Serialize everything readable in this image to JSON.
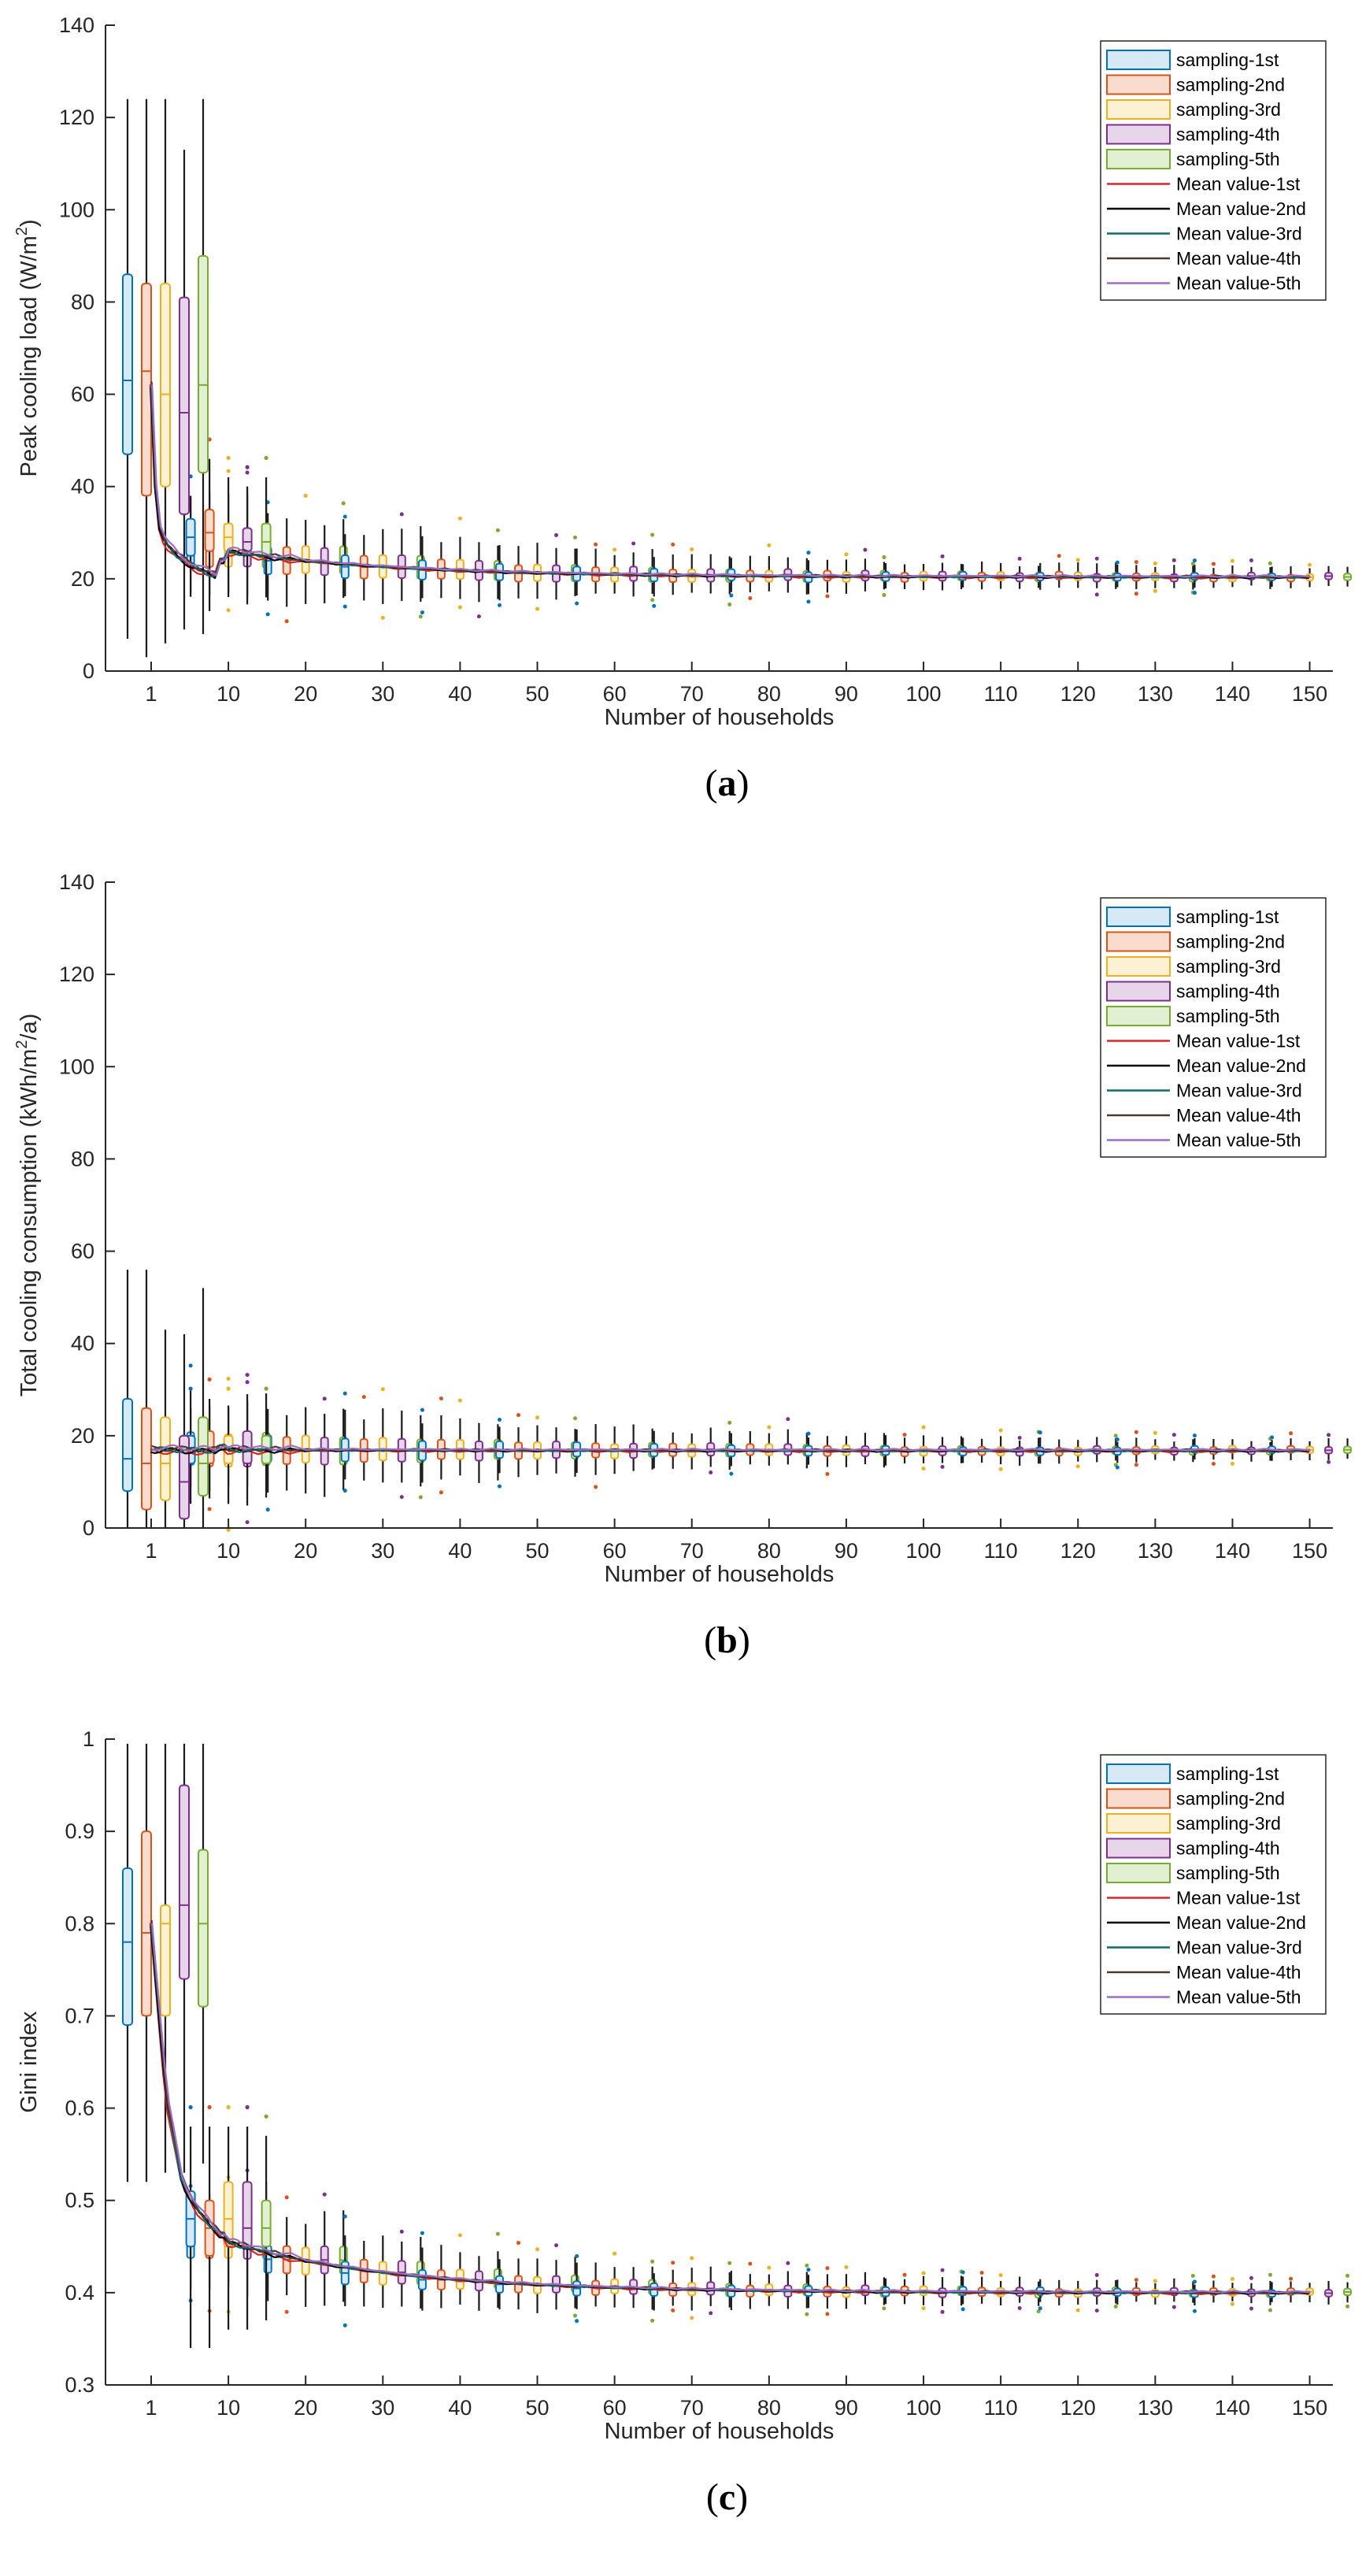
{
  "colors": {
    "s1": "#0072BD",
    "s2": "#D95319",
    "s3": "#EDB120",
    "s4": "#7E2F8E",
    "s5": "#77AC30",
    "m1": "#D62728",
    "m2": "#000000",
    "m3": "#0E6B6E",
    "m4": "#4A3B2E",
    "m5": "#A06CC8",
    "s1fill": "#D6E9F7",
    "s2fill": "#F9DCCE",
    "s3fill": "#FCF1D3",
    "s4fill": "#E7D5EA",
    "s5fill": "#E1EFD2"
  },
  "legend": {
    "items": [
      "sampling-1st",
      "sampling-2nd",
      "sampling-3rd",
      "sampling-4th",
      "sampling-5th",
      "Mean value-1st",
      "Mean value-2nd",
      "Mean value-3rd",
      "Mean value-4th",
      "Mean value-5th"
    ]
  },
  "chart_data": [
    {
      "id": "a",
      "type": "box",
      "caption": "(a)",
      "ylabel_main": "Peak cooling load (W/m",
      "ylabel_sup": "2",
      "ylabel_tail": ")",
      "xlabel": "Number of households",
      "ylim": [
        0,
        140
      ],
      "yticks": [
        0,
        20,
        40,
        60,
        80,
        100,
        120,
        140
      ],
      "xticks": [
        "1",
        "10",
        "20",
        "30",
        "40",
        "50",
        "60",
        "70",
        "80",
        "90",
        "100",
        "110",
        "120",
        "130",
        "140",
        "150"
      ],
      "first_group": [
        {
          "min": 7,
          "q1": 47,
          "med": 63,
          "q3": 86,
          "max": 124
        },
        {
          "min": 3,
          "q1": 38,
          "med": 65,
          "q3": 84,
          "max": 124
        },
        {
          "min": 6,
          "q1": 40,
          "med": 60,
          "q3": 84,
          "max": 124
        },
        {
          "min": 9,
          "q1": 34,
          "med": 56,
          "q3": 81,
          "max": 113
        },
        {
          "min": 8,
          "q1": 43,
          "med": 62,
          "q3": 90,
          "max": 124
        }
      ],
      "second_group": [
        {
          "min": 17,
          "q1": 25,
          "med": 29,
          "q3": 33,
          "max": 38
        },
        {
          "min": 13,
          "q1": 26,
          "med": 30,
          "q3": 35,
          "max": 46
        },
        {
          "min": 17,
          "q1": 26,
          "med": 29,
          "q3": 32,
          "max": 42
        },
        {
          "min": 16,
          "q1": 26,
          "med": 28,
          "q3": 31,
          "max": 40
        },
        {
          "min": 16,
          "q1": 25,
          "med": 28,
          "q3": 32,
          "max": 42
        }
      ],
      "converge": {
        "start": 26.0,
        "end": 20.4,
        "rate": 22
      },
      "mean_curve_y": [
        62,
        50,
        40,
        34,
        31,
        29.5,
        28.5,
        27.5,
        27,
        26.5,
        26,
        25.5,
        25,
        24.7,
        24.3,
        24,
        23.7,
        23.4,
        23.1,
        22.8,
        22.5,
        22.2,
        22,
        21.8,
        21.6,
        21.4,
        21.2,
        21.0,
        20.9,
        20.8,
        20.7,
        20.6,
        20.5,
        20.5,
        20.4,
        20.4
      ]
    },
    {
      "id": "b",
      "type": "box",
      "caption": "(b)",
      "ylabel_main": "Total cooling consumption (kWh/m",
      "ylabel_sup": "2",
      "ylabel_tail": "/a)",
      "xlabel": "Number of households",
      "ylim": [
        0,
        140
      ],
      "yticks": [
        0,
        20,
        40,
        60,
        80,
        100,
        120,
        140
      ],
      "xticks": [
        "1",
        "10",
        "20",
        "30",
        "40",
        "50",
        "60",
        "70",
        "80",
        "90",
        "100",
        "110",
        "120",
        "130",
        "140",
        "150"
      ],
      "first_group": [
        {
          "min": 0,
          "q1": 8,
          "med": 15,
          "q3": 28,
          "max": 56
        },
        {
          "min": 0,
          "q1": 4,
          "med": 14,
          "q3": 26,
          "max": 56
        },
        {
          "min": 0,
          "q1": 6,
          "med": 14,
          "q3": 24,
          "max": 43
        },
        {
          "min": 0,
          "q1": 2,
          "med": 10,
          "q3": 20,
          "max": 42
        },
        {
          "min": 0,
          "q1": 7,
          "med": 14,
          "q3": 24,
          "max": 52
        }
      ],
      "second_group": [
        {
          "min": 9,
          "q1": 14,
          "med": 17,
          "q3": 20,
          "max": 26
        },
        {
          "min": 8,
          "q1": 14,
          "med": 17,
          "q3": 21,
          "max": 28
        },
        {
          "min": 9,
          "q1": 14,
          "med": 17,
          "q3": 20,
          "max": 26
        },
        {
          "min": 9,
          "q1": 14,
          "med": 17,
          "q3": 21,
          "max": 29
        },
        {
          "min": 9,
          "q1": 14,
          "med": 17,
          "q3": 20,
          "max": 26
        }
      ],
      "converge": {
        "start": 17.0,
        "end": 16.8,
        "rate": 22
      },
      "mean_curve_y": [
        17,
        17,
        17,
        16.9,
        16.9,
        16.8,
        16.8,
        16.8
      ]
    },
    {
      "id": "c",
      "type": "box",
      "caption": "(c)",
      "ylabel_main": "Gini index",
      "ylabel_sup": "",
      "ylabel_tail": "",
      "xlabel": "Number of households",
      "ylim": [
        0.3,
        1.0
      ],
      "yticks": [
        0.3,
        0.4,
        0.5,
        0.6,
        0.7,
        0.8,
        0.9,
        1
      ],
      "xticks": [
        "1",
        "10",
        "20",
        "30",
        "40",
        "50",
        "60",
        "70",
        "80",
        "90",
        "100",
        "110",
        "120",
        "130",
        "140",
        "150"
      ],
      "first_group": [
        {
          "min": 0.52,
          "q1": 0.69,
          "med": 0.78,
          "q3": 0.86,
          "max": 0.995
        },
        {
          "min": 0.52,
          "q1": 0.7,
          "med": 0.79,
          "q3": 0.9,
          "max": 0.995
        },
        {
          "min": 0.53,
          "q1": 0.7,
          "med": 0.8,
          "q3": 0.82,
          "max": 0.995
        },
        {
          "min": 0.53,
          "q1": 0.74,
          "med": 0.82,
          "q3": 0.95,
          "max": 0.995
        },
        {
          "min": 0.54,
          "q1": 0.71,
          "med": 0.8,
          "q3": 0.88,
          "max": 0.995
        }
      ],
      "second_group": [
        {
          "min": 0.34,
          "q1": 0.45,
          "med": 0.48,
          "q3": 0.51,
          "max": 0.58
        },
        {
          "min": 0.34,
          "q1": 0.44,
          "med": 0.47,
          "q3": 0.5,
          "max": 0.58
        },
        {
          "min": 0.36,
          "q1": 0.45,
          "med": 0.48,
          "q3": 0.52,
          "max": 0.58
        },
        {
          "min": 0.36,
          "q1": 0.45,
          "med": 0.47,
          "q3": 0.52,
          "max": 0.58
        },
        {
          "min": 0.37,
          "q1": 0.45,
          "med": 0.47,
          "q3": 0.5,
          "max": 0.57
        }
      ],
      "converge": {
        "start": 0.455,
        "end": 0.4,
        "rate": 22
      },
      "mean_curve_y": [
        0.8,
        0.61,
        0.52,
        0.49,
        0.47,
        0.46
      ]
    }
  ]
}
